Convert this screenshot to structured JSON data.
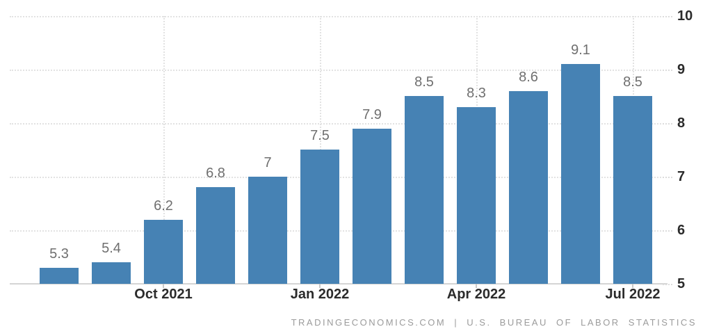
{
  "chart_data": {
    "type": "bar",
    "values": [
      5.3,
      5.4,
      6.2,
      6.8,
      7,
      7.5,
      7.9,
      8.5,
      8.3,
      8.6,
      9.1,
      8.5
    ],
    "bar_labels": [
      "5.3",
      "5.4",
      "6.2",
      "6.8",
      "7",
      "7.5",
      "7.9",
      "8.5",
      "8.3",
      "8.6",
      "9.1",
      "8.5"
    ],
    "x_ticks": [
      {
        "label": "Oct 2021",
        "bar_index": 2
      },
      {
        "label": "Jan 2022",
        "bar_index": 5
      },
      {
        "label": "Apr 2022",
        "bar_index": 8
      },
      {
        "label": "Jul 2022",
        "bar_index": 11
      }
    ],
    "y_ticks": [
      "5",
      "6",
      "7",
      "8",
      "9",
      "10"
    ],
    "ylim": [
      5,
      10
    ],
    "title": "",
    "xlabel": "",
    "ylabel": "",
    "legend": "none",
    "grid": true,
    "bar_color": "#4682b4"
  },
  "colors": {
    "bar": "#4682b4",
    "gridline": "#e2e2e2",
    "axis_line": "#d4d4d4",
    "data_label": "#6f6f6f",
    "axis_label": "#2b2b2b",
    "footer_text": "#9b9b9b"
  },
  "footer": {
    "source_text": "TRADINGECONOMICS.COM | U.S. BUREAU OF LABOR STATISTICS"
  }
}
